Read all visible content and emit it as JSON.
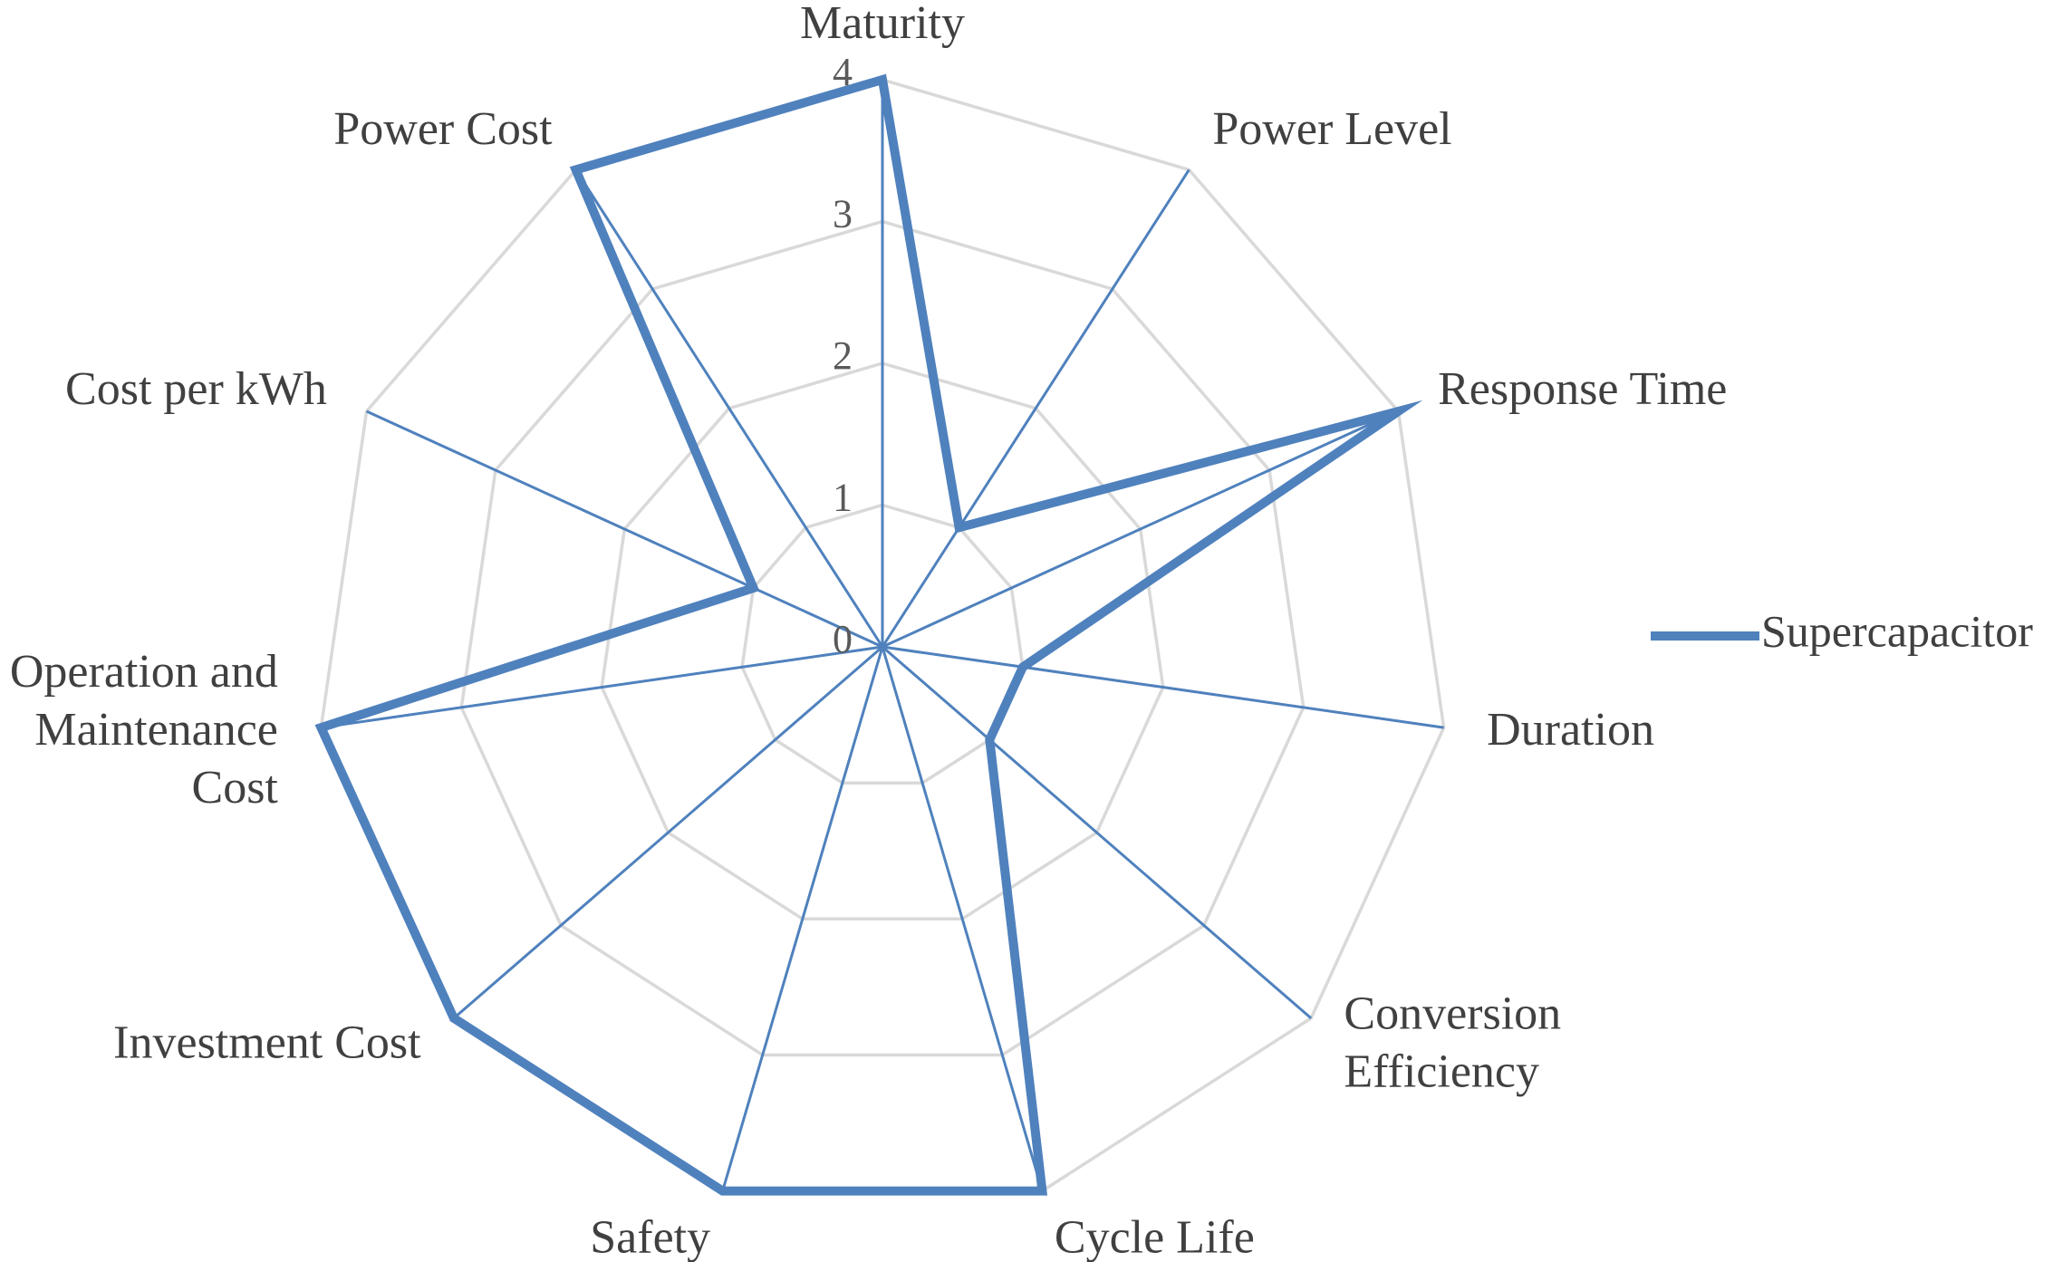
{
  "chart_data": {
    "type": "radar",
    "categories": [
      "Maturity",
      "Power Level",
      "Response Time",
      "Duration",
      "Conversion Efficiency",
      "Cycle Life",
      "Safety",
      "Investment Cost",
      "Operation and Maintenance Cost",
      "Cost per kWh",
      "Power Cost"
    ],
    "category_lines": [
      [
        "Maturity"
      ],
      [
        "Power Level"
      ],
      [
        "Response Time"
      ],
      [
        "Duration"
      ],
      [
        "Conversion",
        "Efficiency"
      ],
      [
        "Cycle Life"
      ],
      [
        "Safety"
      ],
      [
        "Investment Cost"
      ],
      [
        "Operation and",
        "Maintenance",
        "Cost"
      ],
      [
        "Cost per kWh"
      ],
      [
        "Power Cost"
      ]
    ],
    "series": [
      {
        "name": "Supercapacitor",
        "values": [
          4,
          1,
          4,
          1,
          1,
          4,
          4,
          4,
          4,
          1,
          4
        ],
        "color": "#4F81BD"
      }
    ],
    "rlim": [
      0,
      4
    ],
    "ticks": [
      "0",
      "1",
      "2",
      "3",
      "4"
    ],
    "grid": true,
    "grid_color": "#D9D9D9",
    "legend_position": "right"
  }
}
